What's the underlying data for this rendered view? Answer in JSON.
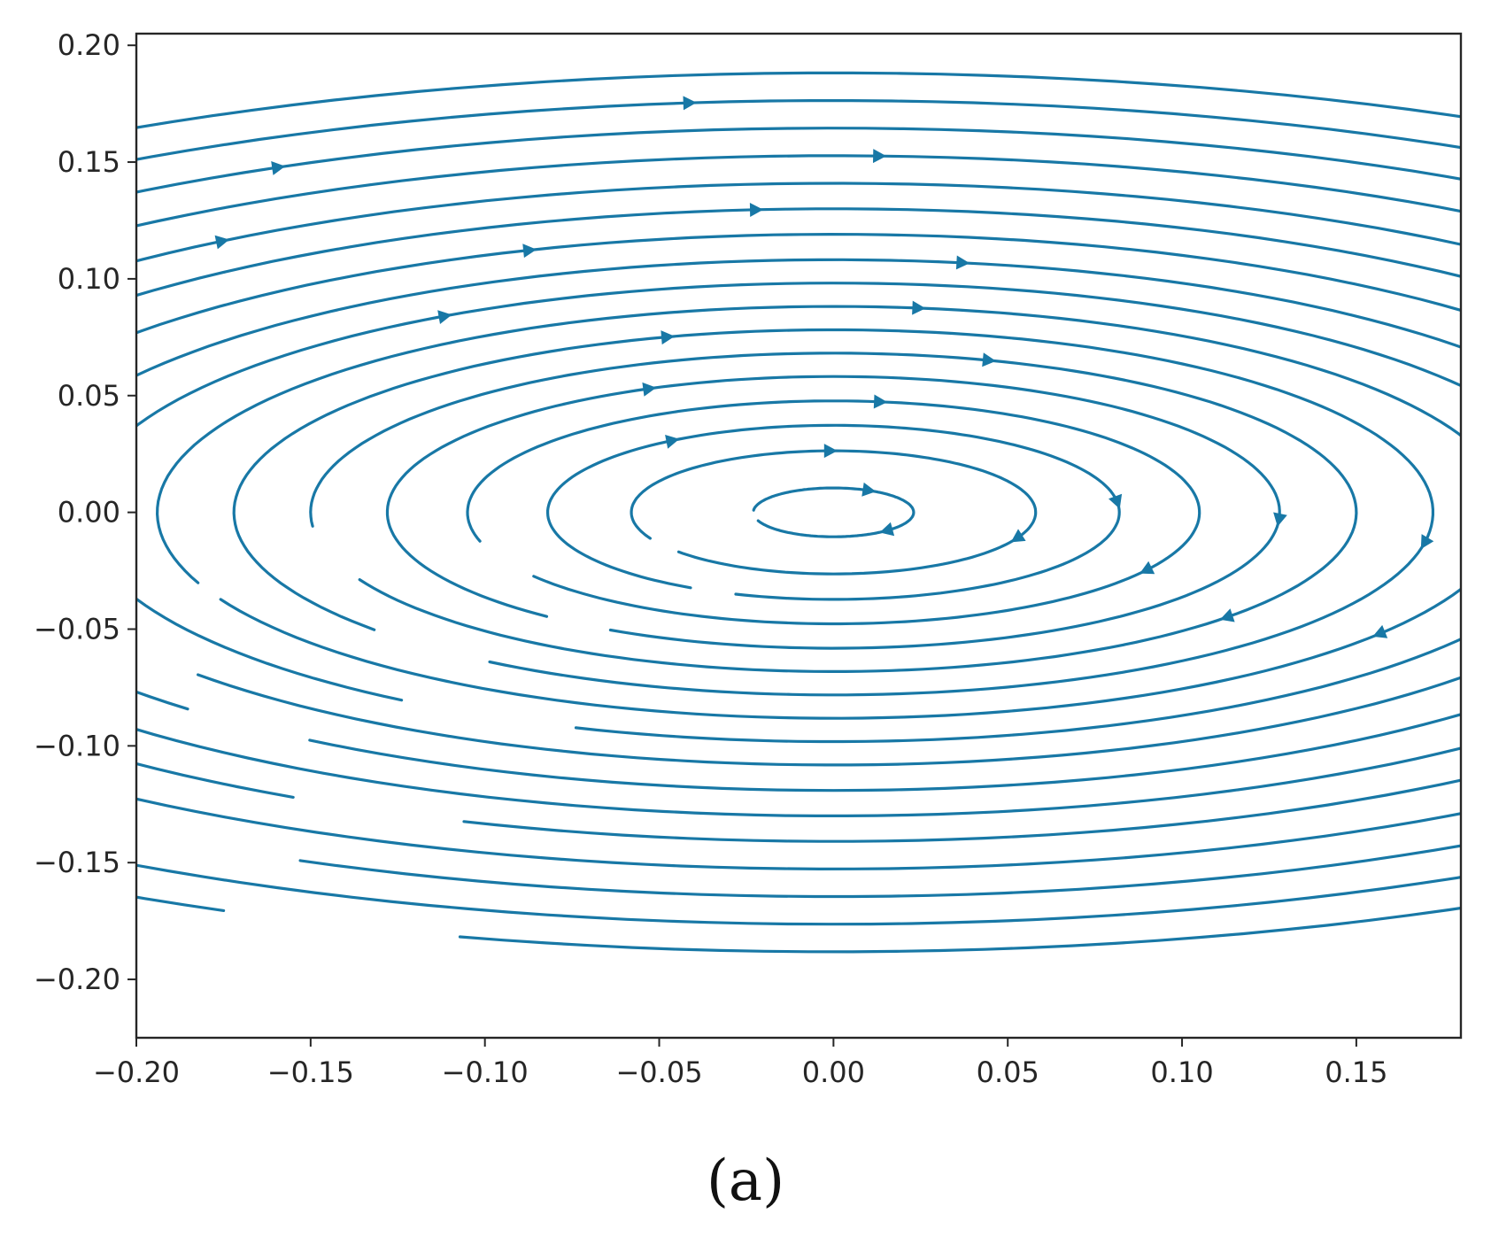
{
  "chart_data": {
    "type": "streamplot",
    "title": "",
    "xlabel": "",
    "ylabel": "",
    "xlim": [
      -0.2,
      0.18
    ],
    "ylim": [
      -0.225,
      0.205
    ],
    "x_ticks": [
      -0.2,
      -0.15,
      -0.1,
      -0.05,
      0.0,
      0.05,
      0.1,
      0.15
    ],
    "x_tick_labels": [
      "−0.20",
      "−0.15",
      "−0.10",
      "−0.05",
      "0.00",
      "0.05",
      "0.10",
      "0.15"
    ],
    "y_ticks": [
      0.2,
      0.15,
      0.1,
      0.05,
      0.0,
      -0.05,
      -0.1,
      -0.15,
      -0.2
    ],
    "y_tick_labels": [
      "0.20",
      "0.15",
      "0.10",
      "0.05",
      "0.00",
      "−0.05",
      "−0.10",
      "−0.15",
      "−0.20"
    ],
    "flow": {
      "center": [
        0.0,
        0.0
      ],
      "rotation": "clockwise",
      "ellipse_axis_ratio_x_to_y": 2.2
    },
    "streamlines": [
      {
        "a": 0.023,
        "start_deg": 185,
        "end_deg": 520
      },
      {
        "a": 0.058,
        "start_deg": 155,
        "end_deg": 500
      },
      {
        "a": 0.082,
        "start_deg": 120,
        "end_deg": 470
      },
      {
        "a": 0.105,
        "start_deg": 165,
        "end_deg": 505
      },
      {
        "a": 0.128,
        "start_deg": 130,
        "end_deg": 480
      },
      {
        "a": 0.15,
        "start_deg": 175,
        "end_deg": 515
      },
      {
        "a": 0.172,
        "start_deg": 140,
        "end_deg": 485
      },
      {
        "a": 0.194,
        "start_deg": 160,
        "end_deg": 515
      },
      {
        "a": 0.216,
        "start_deg": 125,
        "end_deg": 470
      },
      {
        "a": 0.238,
        "start_deg": 170,
        "end_deg": 500
      },
      {
        "a": 0.262,
        "start_deg": 135,
        "end_deg": 485
      },
      {
        "a": 0.286,
        "start_deg": 150,
        "end_deg": 500
      },
      {
        "a": 0.31,
        "start_deg": 120,
        "end_deg": 470
      },
      {
        "a": 0.336,
        "start_deg": 160,
        "end_deg": 500
      },
      {
        "a": 0.362,
        "start_deg": 130,
        "end_deg": 475
      },
      {
        "a": 0.388,
        "start_deg": 150,
        "end_deg": 495
      },
      {
        "a": 0.414,
        "start_deg": 115,
        "end_deg": 465
      }
    ],
    "line_color": "#1f77b4"
  },
  "caption": "(a)",
  "colors": {
    "stream": "#1878a6",
    "axes": "#262626",
    "background": "#ffffff"
  }
}
